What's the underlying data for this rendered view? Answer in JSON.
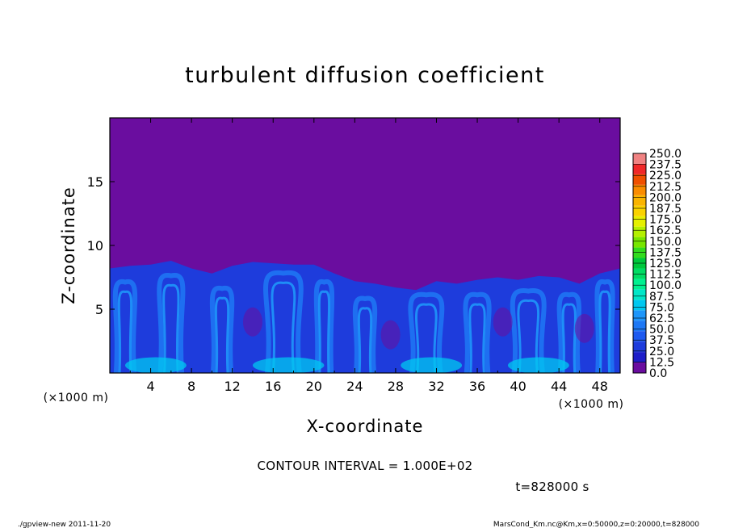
{
  "chart_data": {
    "type": "heatmap",
    "title": "turbulent diffusion coefficient",
    "xlabel": "X-coordinate",
    "ylabel": "Z-coordinate",
    "x_unit": "(×1000 m)",
    "y_unit": "(×1000 m)",
    "xlim": [
      0,
      50
    ],
    "ylim": [
      0,
      20
    ],
    "x_ticks": [
      "4",
      "8",
      "12",
      "16",
      "20",
      "24",
      "28",
      "32",
      "36",
      "40",
      "44",
      "48"
    ],
    "y_ticks": [
      "5",
      "10",
      "15"
    ],
    "grid": false,
    "legend": "right colorbar",
    "colorbar": {
      "levels": [
        "0.0",
        "12.5",
        "25.0",
        "37.5",
        "50.0",
        "62.5",
        "75.0",
        "87.5",
        "100.0",
        "112.5",
        "125.0",
        "137.5",
        "150.0",
        "162.5",
        "175.0",
        "187.5",
        "200.0",
        "212.5",
        "225.0",
        "237.5",
        "250.0"
      ],
      "colors": [
        "#6a0d9f",
        "#1e1ec8",
        "#1e3cdc",
        "#1e5af0",
        "#1e78f5",
        "#1e96fa",
        "#00c8f0",
        "#00e6c8",
        "#00f090",
        "#00dc64",
        "#00c83c",
        "#32dc1e",
        "#78e600",
        "#b4f000",
        "#e6f000",
        "#fad200",
        "#fab400",
        "#fa8c00",
        "#f05000",
        "#f02828",
        "#f08282"
      ]
    },
    "contour_interval": "CONTOUR INTERVAL = 1.000E+02",
    "time": "t=828000 s",
    "boundary_layer_top_km": [
      [
        0,
        8.2
      ],
      [
        2,
        8.4
      ],
      [
        4,
        8.5
      ],
      [
        6,
        8.8
      ],
      [
        8,
        8.2
      ],
      [
        10,
        7.8
      ],
      [
        12,
        8.4
      ],
      [
        14,
        8.7
      ],
      [
        16,
        8.6
      ],
      [
        18,
        8.5
      ],
      [
        20,
        8.5
      ],
      [
        22,
        7.8
      ],
      [
        24,
        7.2
      ],
      [
        26,
        7.0
      ],
      [
        28,
        6.7
      ],
      [
        30,
        6.5
      ],
      [
        32,
        7.2
      ],
      [
        34,
        7.0
      ],
      [
        36,
        7.3
      ],
      [
        38,
        7.5
      ],
      [
        40,
        7.3
      ],
      [
        42,
        7.6
      ],
      [
        44,
        7.5
      ],
      [
        46,
        7.0
      ],
      [
        48,
        7.8
      ],
      [
        50,
        8.2
      ]
    ]
  },
  "footer": {
    "left": "./gpview-new   2011-11-20",
    "right": "MarsCond_Km.nc@Km,x=0:50000,z=0:20000,t=828000"
  }
}
